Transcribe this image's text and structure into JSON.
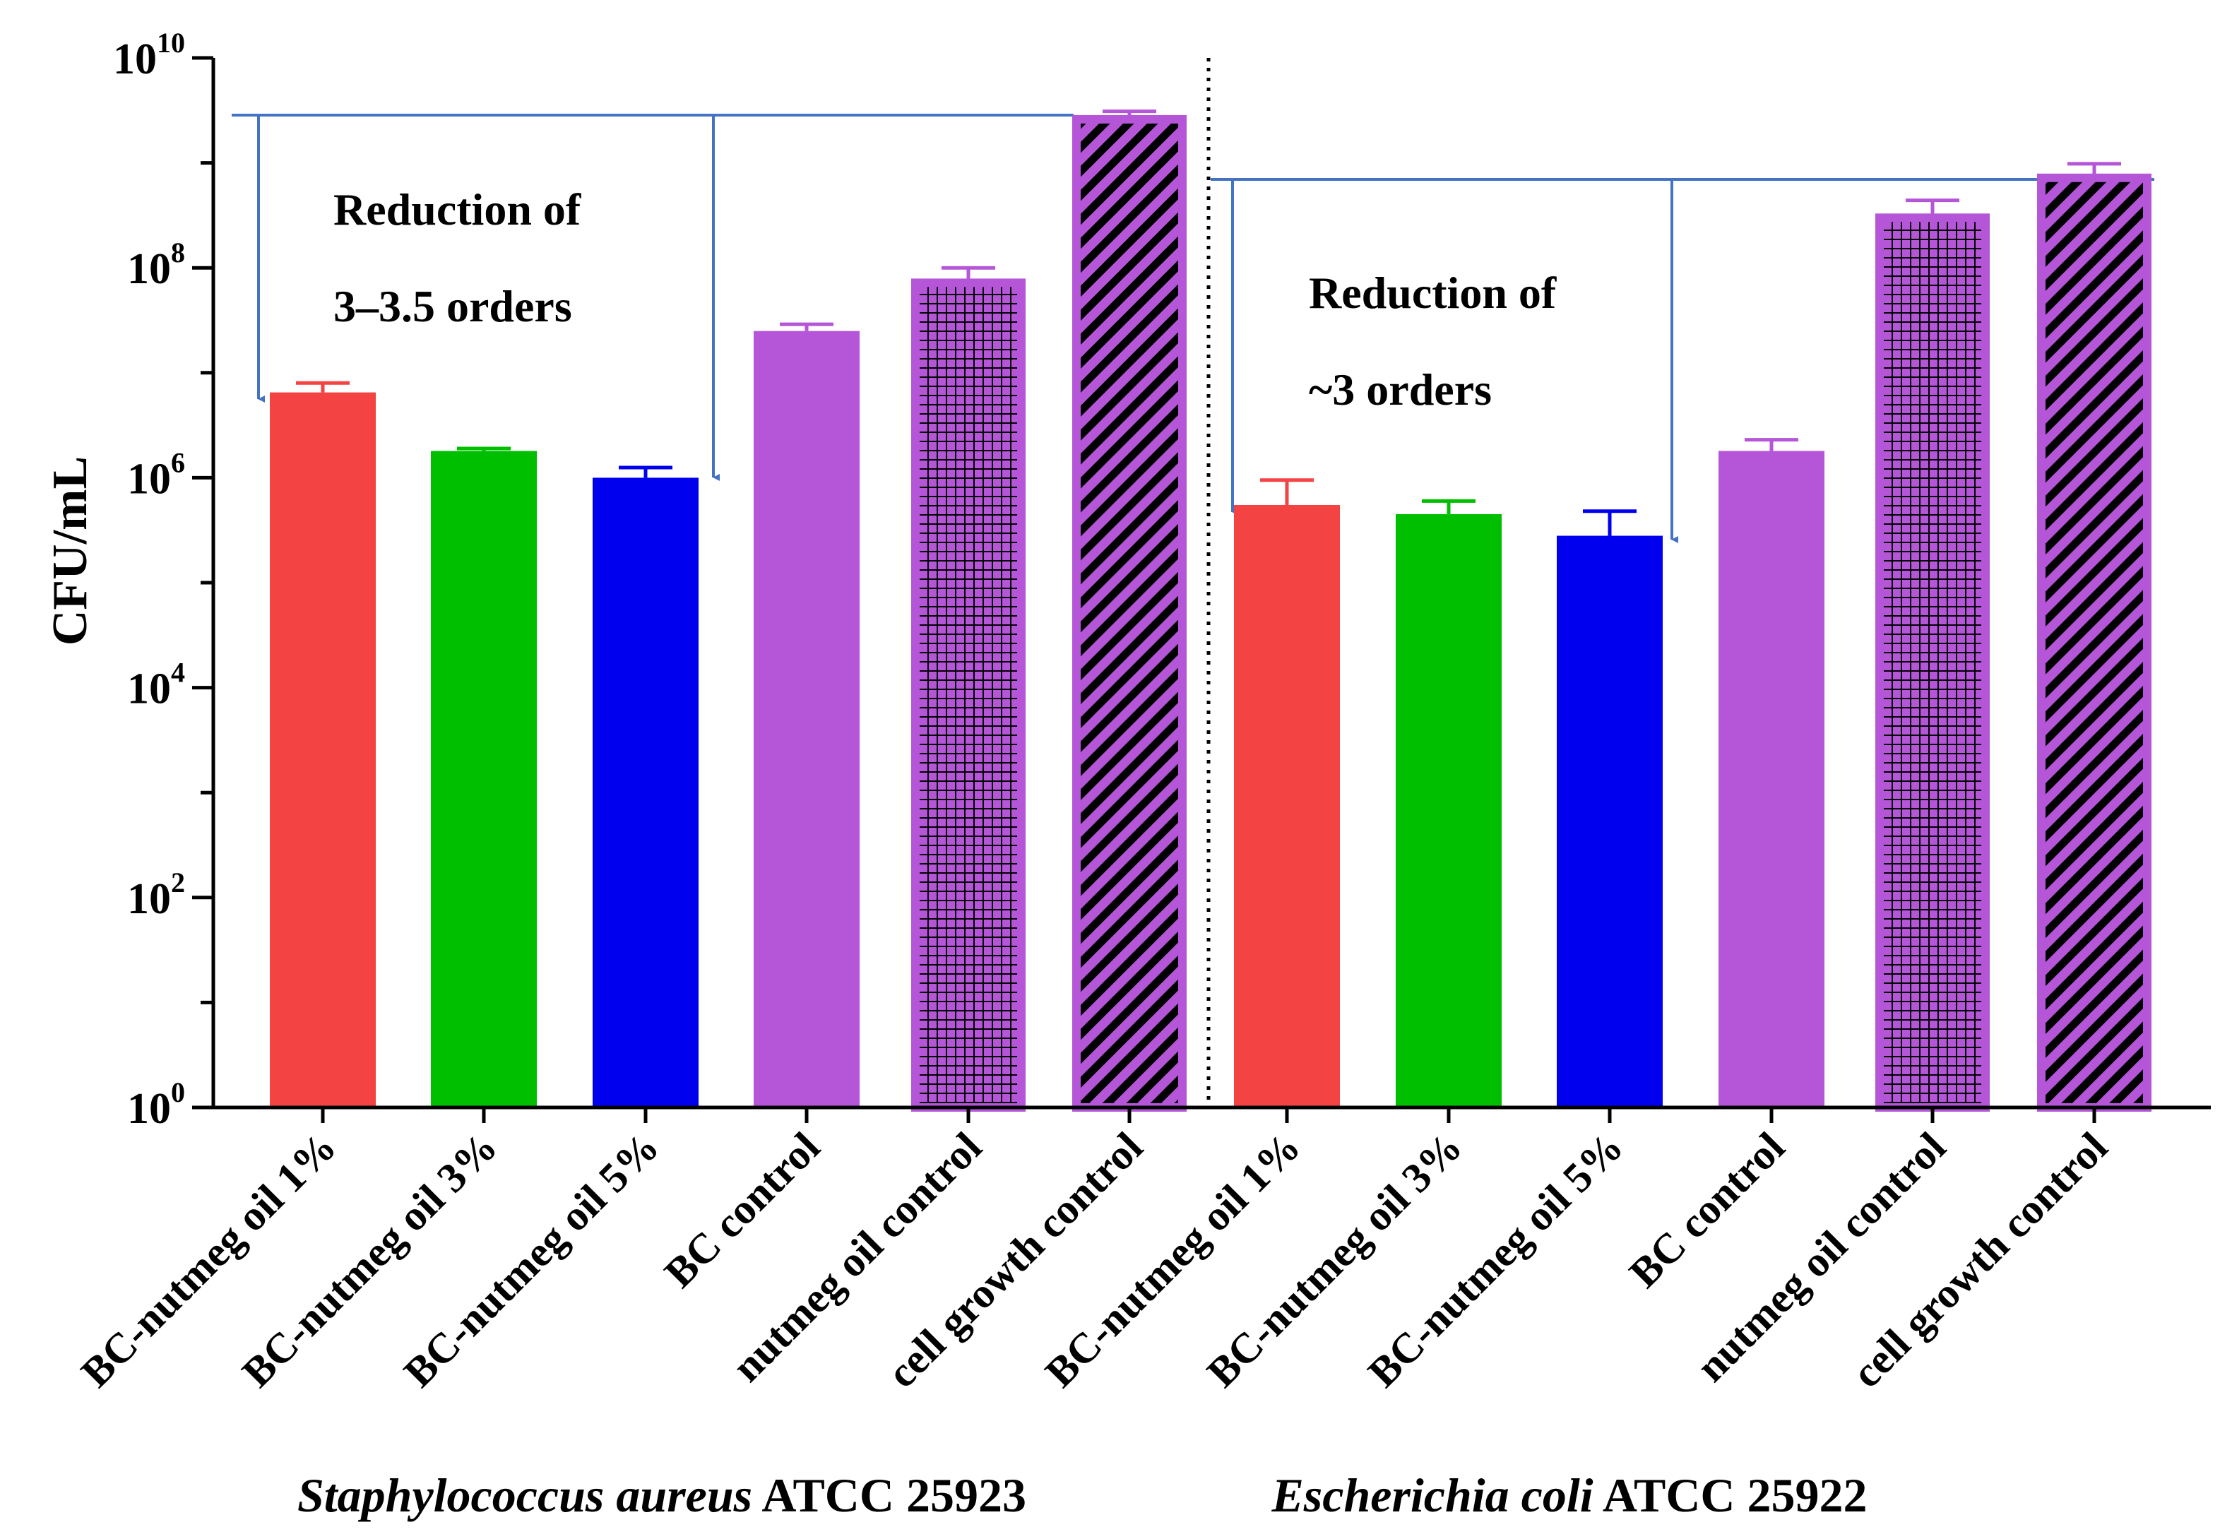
{
  "chart_data": {
    "type": "bar",
    "title": "",
    "ylabel": "CFU/mL",
    "xlabel": "",
    "y_scale": "log10",
    "ylim": [
      1,
      10000000000
    ],
    "y_ticks": [
      {
        "value": 1,
        "base": "10",
        "exp": "0"
      },
      {
        "value": 100,
        "base": "10",
        "exp": "2"
      },
      {
        "value": 10000,
        "base": "10",
        "exp": "4"
      },
      {
        "value": 1000000,
        "base": "10",
        "exp": "6"
      },
      {
        "value": 100000000,
        "base": "10",
        "exp": "8"
      },
      {
        "value": 10000000000,
        "base": "10",
        "exp": "10"
      }
    ],
    "groups": [
      {
        "species": "Staphylococcus aureus",
        "strain": "ATCC 25923",
        "annotation_line1": "Reduction of",
        "annotation_line2": "3–3.5 orders",
        "bars": [
          {
            "label": "BC-nutmeg oil 1%",
            "value": 6500000,
            "error": 8000000,
            "color": "#f44343",
            "pattern": "none"
          },
          {
            "label": "BC-nutmeg oil 3%",
            "value": 1800000,
            "error": 1900000,
            "color": "#00bf00",
            "pattern": "none"
          },
          {
            "label": "BC-nutmeg oil 5%",
            "value": 1000000,
            "error": 1250000,
            "color": "#0000ee",
            "pattern": "none"
          },
          {
            "label": "BC control",
            "value": 25000000,
            "error": 29000000,
            "color": "#b556d8",
            "pattern": "none"
          },
          {
            "label": "nutmeg oil control",
            "value": 72000000,
            "error": 100000000,
            "color": "#b556d8",
            "pattern": "grid"
          },
          {
            "label": "cell growth control",
            "value": 2600000000,
            "error": 3100000000,
            "color": "#b556d8",
            "pattern": "diagonal"
          }
        ]
      },
      {
        "species": "Escherichia coli",
        "strain": "ATCC 25922",
        "annotation_line1": "Reduction of",
        "annotation_line2": "~3 orders",
        "bars": [
          {
            "label": "BC-nutmeg oil 1%",
            "value": 550000,
            "error": 950000,
            "color": "#f44343",
            "pattern": "none"
          },
          {
            "label": "BC-nutmeg oil 3%",
            "value": 450000,
            "error": 600000,
            "color": "#00bf00",
            "pattern": "none"
          },
          {
            "label": "BC-nutmeg oil 5%",
            "value": 280000,
            "error": 480000,
            "color": "#0000ee",
            "pattern": "none"
          },
          {
            "label": "BC control",
            "value": 1800000,
            "error": 2300000,
            "color": "#b556d8",
            "pattern": "none"
          },
          {
            "label": "nutmeg oil control",
            "value": 300000000,
            "error": 440000000,
            "color": "#b556d8",
            "pattern": "grid"
          },
          {
            "label": "cell growth control",
            "value": 720000000,
            "error": 980000000,
            "color": "#b556d8",
            "pattern": "diagonal"
          }
        ]
      }
    ],
    "arrow_color": "#4472c4"
  }
}
